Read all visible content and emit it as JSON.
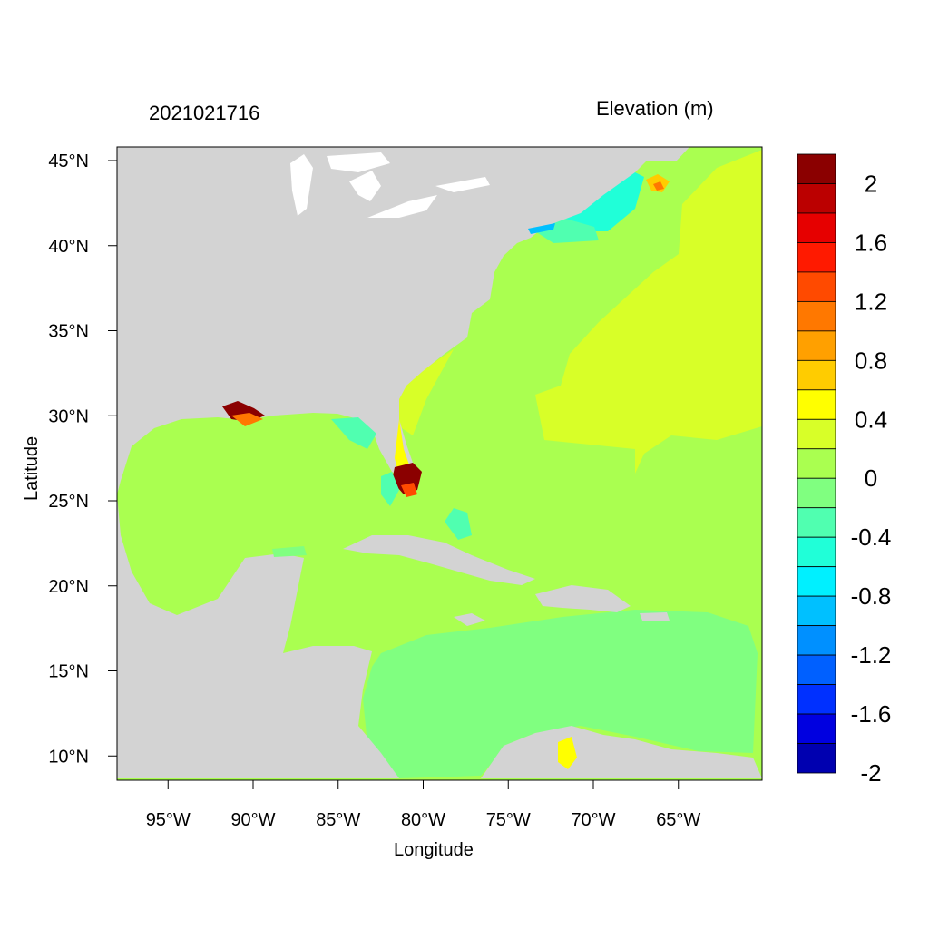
{
  "titles": {
    "left": "2021021716",
    "right": "Elevation (m)"
  },
  "axes": {
    "xlabel": "Longitude",
    "ylabel": "Latitude",
    "x_ticks": [
      "95°W",
      "90°W",
      "85°W",
      "80°W",
      "75°W",
      "70°W",
      "65°W"
    ],
    "y_ticks": [
      "45°N",
      "40°N",
      "35°N",
      "30°N",
      "25°N",
      "20°N",
      "15°N",
      "10°N"
    ]
  },
  "colorbar": {
    "labels": [
      "2",
      "1.6",
      "1.2",
      "0.8",
      "0.4",
      "0",
      "-0.4",
      "-0.8",
      "-1.2",
      "-1.6",
      "-2"
    ],
    "colors_top_to_bottom": [
      "#8b0000",
      "#bb0000",
      "#e60000",
      "#ff1a00",
      "#ff4a00",
      "#ff7800",
      "#ffa000",
      "#ffcc00",
      "#ffff00",
      "#d8ff28",
      "#aaff50",
      "#80ff80",
      "#50ffb0",
      "#20ffd8",
      "#00f0ff",
      "#00c0ff",
      "#0090ff",
      "#0060ff",
      "#0030ff",
      "#0000e0",
      "#0000b0"
    ]
  },
  "chart_data": {
    "type": "heatmap",
    "title": "Elevation (m)",
    "subtitle": "2021021716",
    "xlabel": "Longitude",
    "ylabel": "Latitude",
    "xlim": [
      -98,
      -60
    ],
    "ylim": [
      8.5,
      46
    ],
    "color_range": [
      -2.2,
      2.2
    ],
    "colors": {
      "land": "#d3d3d3",
      "lakes": "#ffffff",
      "near_zero": "#aaff50",
      "slight_positive": "#d8ff28",
      "slight_negative": "#80ff80"
    }
  }
}
